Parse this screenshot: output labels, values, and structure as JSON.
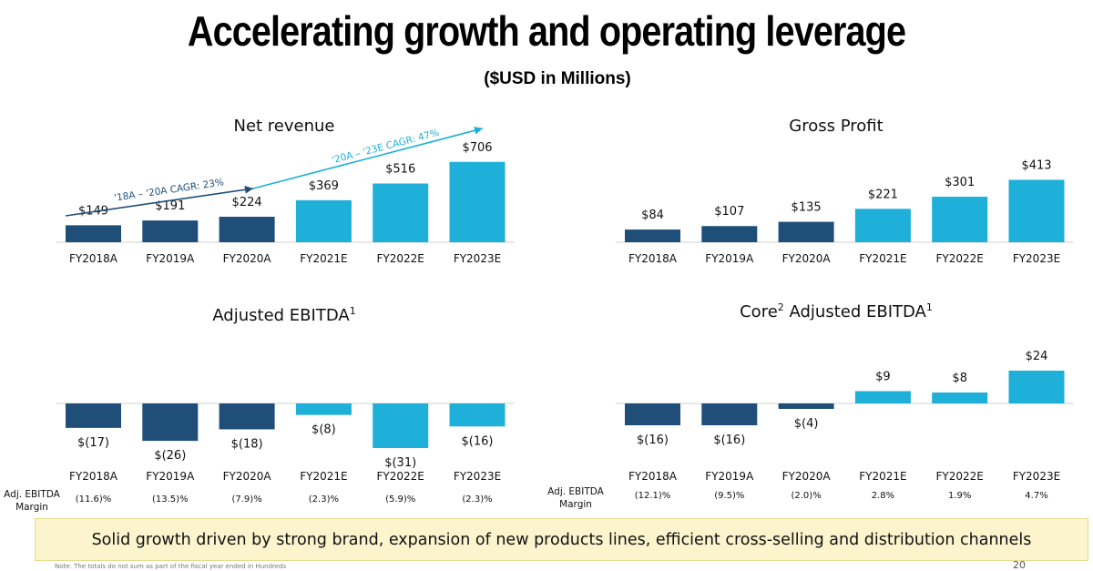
{
  "page": {
    "title": "Accelerating growth and operating leverage",
    "subtitle": "($USD in Millions)",
    "banner": "Solid growth driven by strong brand, expansion of new products lines, efficient cross-selling and distribution channels",
    "footnote": "Note: The totals do not sum as part of the fiscal year ended in Hundreds",
    "page_number": "20"
  },
  "colors": {
    "actual": "#1f4e79",
    "estimate": "#1eb0d8",
    "axis": "#d0d0d0"
  },
  "chart_data": [
    {
      "id": "net-revenue",
      "type": "bar",
      "title": "Net revenue",
      "categories": [
        "FY2018A",
        "FY2019A",
        "FY2020A",
        "FY2021E",
        "FY2022E",
        "FY2023E"
      ],
      "values": [
        149,
        191,
        224,
        369,
        516,
        706
      ],
      "labels": [
        "$149",
        "$191",
        "$224",
        "$369",
        "$516",
        "$706"
      ],
      "estimate_from_index": 3,
      "annotations": [
        {
          "text": "'18A – '20A CAGR: 23%",
          "from": "FY2018A",
          "to": "FY2020A",
          "color": "#1f4e79"
        },
        {
          "text": "'20A – '23E CAGR: 47%",
          "from": "FY2020A",
          "to": "FY2023E",
          "color": "#1eb0d8"
        }
      ]
    },
    {
      "id": "gross-profit",
      "type": "bar",
      "title": "Gross Profit",
      "categories": [
        "FY2018A",
        "FY2019A",
        "FY2020A",
        "FY2021E",
        "FY2022E",
        "FY2023E"
      ],
      "values": [
        84,
        107,
        135,
        221,
        301,
        413
      ],
      "labels": [
        "$84",
        "$107",
        "$135",
        "$221",
        "$301",
        "$413"
      ],
      "estimate_from_index": 3
    },
    {
      "id": "adjusted-ebitda",
      "type": "bar",
      "title": "Adjusted EBITDA",
      "title_sup": "1",
      "categories": [
        "FY2018A",
        "FY2019A",
        "FY2020A",
        "FY2021E",
        "FY2022E",
        "FY2023E"
      ],
      "values": [
        -17,
        -26,
        -18,
        -8,
        -31,
        -16
      ],
      "labels": [
        "$(17)",
        "$(26)",
        "$(18)",
        "$(8)",
        "$(31)",
        "$(16)"
      ],
      "estimate_from_index": 3,
      "margin_label": "Adj. EBITDA Margin",
      "margins": [
        "(11.6)%",
        "(13.5)%",
        "(7.9)%",
        "(2.3)%",
        "(5.9)%",
        "(2.3)%"
      ]
    },
    {
      "id": "core-adjusted-ebitda",
      "type": "bar",
      "title": "Core",
      "title_sup": "2",
      "title_rest": "Adjusted EBITDA",
      "title_sup2": "1",
      "categories": [
        "FY2018A",
        "FY2019A",
        "FY2020A",
        "FY2021E",
        "FY2022E",
        "FY2023E"
      ],
      "values": [
        -16,
        -16,
        -4,
        9,
        8,
        24
      ],
      "labels": [
        "$(16)",
        "$(16)",
        "$(4)",
        "$9",
        "$8",
        "$24"
      ],
      "estimate_from_index": 3,
      "margin_label": "Adj. EBITDA Margin",
      "margins": [
        "(12.1)%",
        "(9.5)%",
        "(2.0)%",
        "2.8%",
        "1.9%",
        "4.7%"
      ]
    }
  ]
}
